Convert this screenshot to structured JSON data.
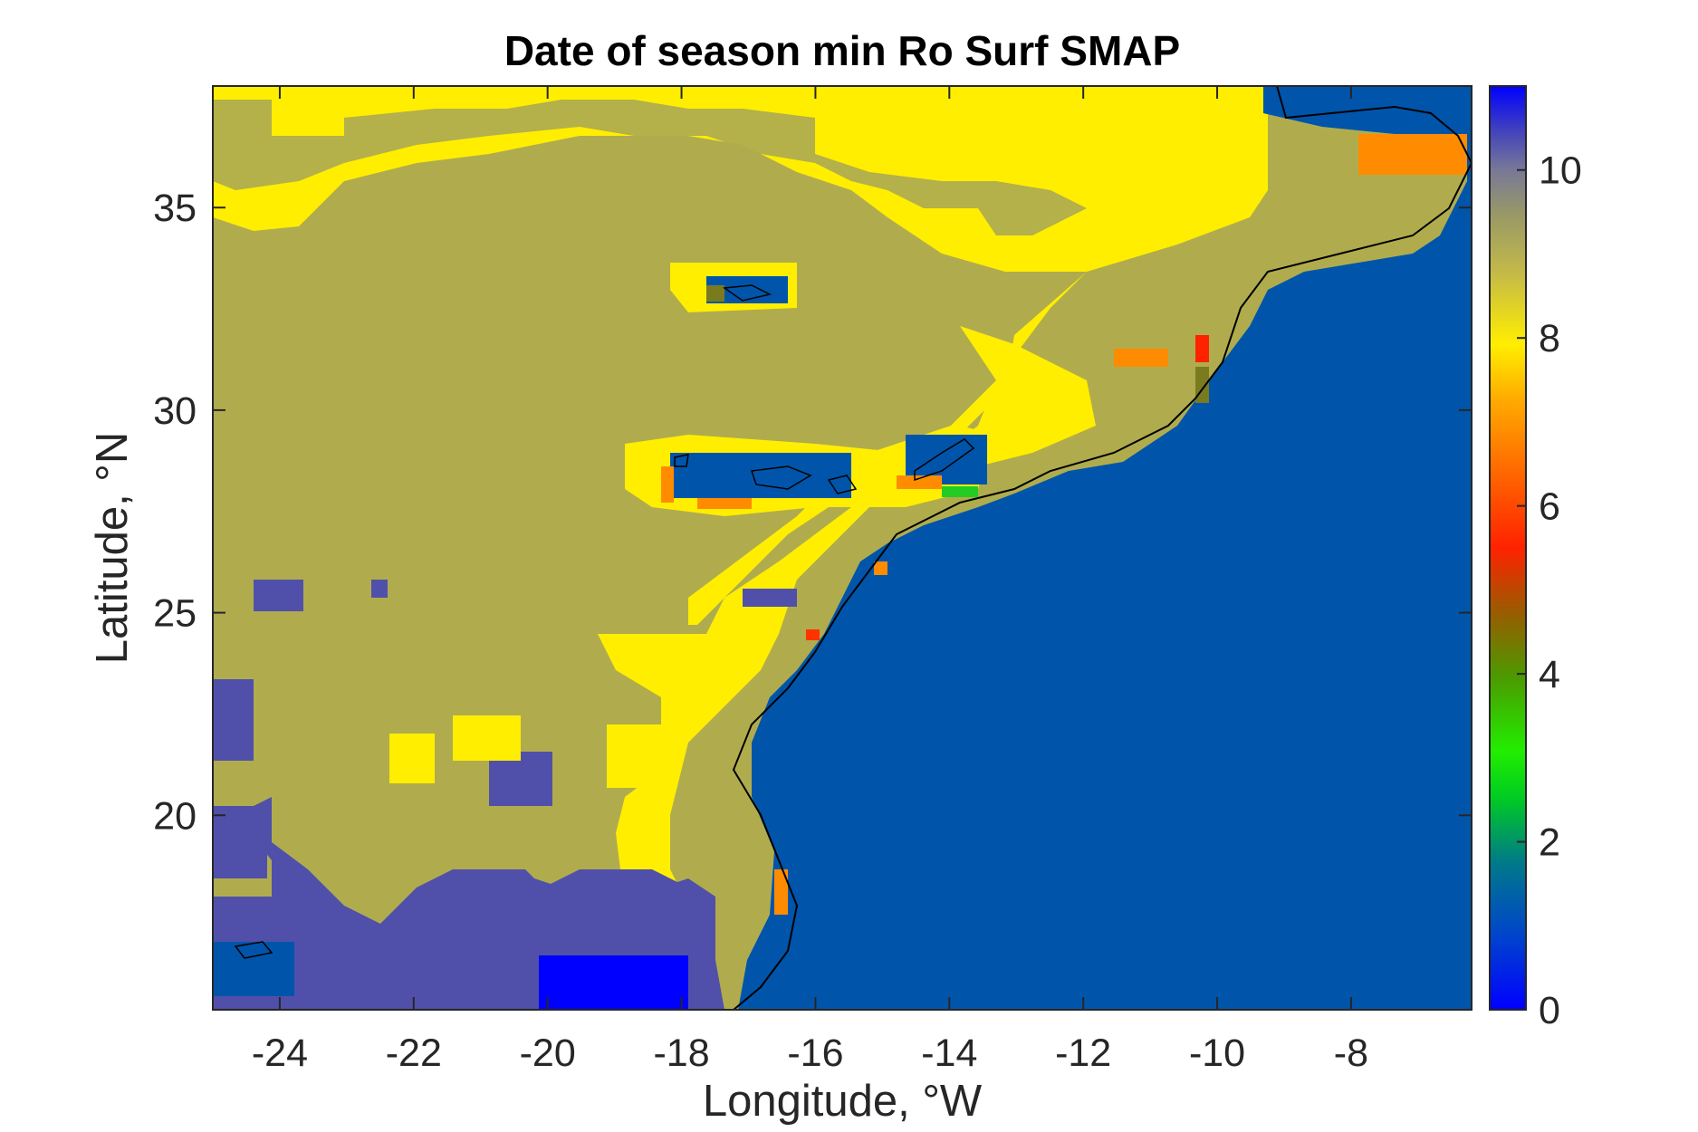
{
  "chart_data": {
    "type": "heatmap",
    "title": "Date of season min Ro Surf SMAP",
    "xlabel": "Longitude, °W",
    "ylabel": "Latitude, °N",
    "xlim": [
      -25,
      -6.2
    ],
    "ylim": [
      15.2,
      38
    ],
    "xticks": [
      -24,
      -22,
      -20,
      -18,
      -16,
      -14,
      -12,
      -10,
      -8
    ],
    "yticks": [
      20,
      25,
      30,
      35
    ],
    "colorbar": {
      "limits": [
        0,
        11
      ],
      "ticks": [
        0,
        2,
        4,
        6,
        8,
        10
      ],
      "colormap": "jet-like (blue → green → red → yellow → olive → gray → blue)"
    },
    "grid": false,
    "category_colors": {
      "ocean_nearshore": "#0055aa",
      "land_coastal": "#ffee00",
      "land_interior": "#b0ac4e",
      "land_south": "#5050aa",
      "land_deep_blue": "#0000ff",
      "orange": "#ff8c00",
      "red": "#ff2200",
      "green": "#22cc22",
      "dark_olive": "#7a7a1e"
    },
    "regions": [
      {
        "category": "ocean_nearshore",
        "value": 0.8,
        "approx_extent": "Atlantic off NW Africa, east of coastline from 15.2°N to 38°N"
      },
      {
        "category": "land_coastal",
        "value": 8.0,
        "approx_extent": "north coast band and coastal strip"
      },
      {
        "category": "land_interior",
        "value": 9.0,
        "approx_extent": "most of interior from -25 to -13°W"
      },
      {
        "category": "land_south",
        "value": 10.5,
        "approx_extent": "southern interior 15–19°N and scattered patches"
      },
      {
        "category": "land_deep_blue",
        "value": 0.2,
        "approx_extent": "-20 to -18°W, 15.2–16.5°N"
      },
      {
        "category": "orange",
        "value": 7.0,
        "approx_extent": "scattered coastal pixels near -16.5°W 17.5°N, -7°W 36.5°N"
      }
    ]
  }
}
